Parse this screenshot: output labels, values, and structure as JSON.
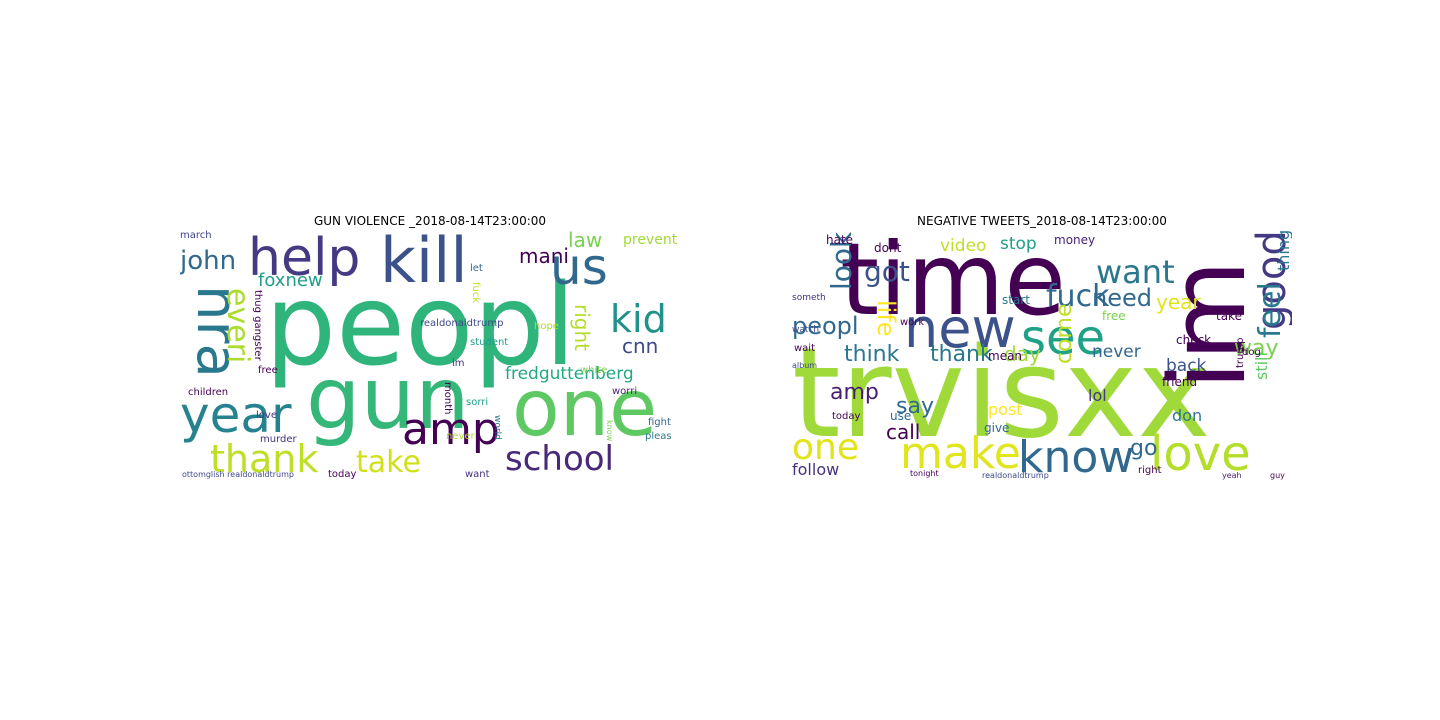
{
  "panels": [
    {
      "title": "GUN VIOLENCE _2018-08-14T23:00:00",
      "words": [
        {
          "text": "peopl",
          "weight": 100,
          "color": "#2fb47c"
        },
        {
          "text": "gun",
          "weight": 72,
          "color": "#35b779"
        },
        {
          "text": "one",
          "weight": 64,
          "color": "#5ec962"
        },
        {
          "text": "kill",
          "weight": 50,
          "color": "#3b528b"
        },
        {
          "text": "us",
          "weight": 40,
          "color": "#31688e"
        },
        {
          "text": "help",
          "weight": 40,
          "color": "#443983"
        },
        {
          "text": "nra",
          "weight": 42,
          "color": "#2a788e"
        },
        {
          "text": "year",
          "weight": 38,
          "color": "#26828e"
        },
        {
          "text": "amp",
          "weight": 36,
          "color": "#440154"
        },
        {
          "text": "kid",
          "weight": 30,
          "color": "#21918c"
        },
        {
          "text": "school",
          "weight": 30,
          "color": "#482878"
        },
        {
          "text": "thank",
          "weight": 30,
          "color": "#bddf26"
        },
        {
          "text": "take",
          "weight": 26,
          "color": "#d0e11c"
        },
        {
          "text": "everi",
          "weight": 24,
          "color": "#addc30"
        },
        {
          "text": "john",
          "weight": 22,
          "color": "#31688e"
        },
        {
          "text": "foxnew",
          "weight": 16,
          "color": "#1f9e89"
        },
        {
          "text": "mani",
          "weight": 16,
          "color": "#440154"
        },
        {
          "text": "law",
          "weight": 16,
          "color": "#7ad151"
        },
        {
          "text": "cnn",
          "weight": 16,
          "color": "#3e4989"
        },
        {
          "text": "right",
          "weight": 16,
          "color": "#b5de2b"
        },
        {
          "text": "fredguttenberg",
          "weight": 14,
          "color": "#22a884"
        },
        {
          "text": "prevent",
          "weight": 12,
          "color": "#a0da39"
        },
        {
          "text": "thug gangster",
          "weight": 9,
          "color": "#440154"
        },
        {
          "text": "realdonaldtrump",
          "weight": 8,
          "color": "#3e4989"
        },
        {
          "text": "student",
          "weight": 8,
          "color": "#1f9e89"
        },
        {
          "text": "march",
          "weight": 8,
          "color": "#414487"
        },
        {
          "text": "let",
          "weight": 8,
          "color": "#31688e"
        },
        {
          "text": "fuck",
          "weight": 8,
          "color": "#bddf26"
        },
        {
          "text": "hope",
          "weight": 8,
          "color": "#addc30"
        },
        {
          "text": "white",
          "weight": 8,
          "color": "#7ad151"
        },
        {
          "text": "worri",
          "weight": 8,
          "color": "#481f70"
        },
        {
          "text": "im",
          "weight": 8,
          "color": "#46327e"
        },
        {
          "text": "month",
          "weight": 8,
          "color": "#440154"
        },
        {
          "text": "sorri",
          "weight": 8,
          "color": "#1f9e89"
        },
        {
          "text": "free",
          "weight": 8,
          "color": "#440154"
        },
        {
          "text": "children",
          "weight": 8,
          "color": "#440154"
        },
        {
          "text": "love",
          "weight": 8,
          "color": "#46327e"
        },
        {
          "text": "murder",
          "weight": 8,
          "color": "#46327e"
        },
        {
          "text": "world",
          "weight": 7,
          "color": "#2a788e"
        },
        {
          "text": "fight",
          "weight": 7,
          "color": "#31688e"
        },
        {
          "text": "never",
          "weight": 8,
          "color": "#addc30"
        },
        {
          "text": "pleas",
          "weight": 8,
          "color": "#2a788e"
        },
        {
          "text": "today",
          "weight": 8,
          "color": "#440154"
        },
        {
          "text": "want",
          "weight": 8,
          "color": "#46327e"
        },
        {
          "text": "know",
          "weight": 6,
          "color": "#7ad151"
        },
        {
          "text": "ottomglish realdonaldtrump",
          "weight": 5,
          "color": "#3e4989"
        }
      ]
    },
    {
      "title": "NEGATIVE TWEETS_2018-08-14T23:00:00",
      "words": [
        {
          "text": "trvisxx",
          "weight": 100,
          "color": "#9fda3a"
        },
        {
          "text": "time",
          "weight": 80,
          "color": "#440154"
        },
        {
          "text": "im",
          "weight": 80,
          "color": "#440154"
        },
        {
          "text": "new",
          "weight": 44,
          "color": "#3b528b"
        },
        {
          "text": "see",
          "weight": 40,
          "color": "#1fa188"
        },
        {
          "text": "know",
          "weight": 38,
          "color": "#31688e"
        },
        {
          "text": "love",
          "weight": 38,
          "color": "#b5de2b"
        },
        {
          "text": "make",
          "weight": 36,
          "color": "#e0e51e"
        },
        {
          "text": "one",
          "weight": 30,
          "color": "#e2e418"
        },
        {
          "text": "good",
          "weight": 30,
          "color": "#443983"
        },
        {
          "text": "want",
          "weight": 26,
          "color": "#2a788e"
        },
        {
          "text": "fuck",
          "weight": 26,
          "color": "#31688e"
        },
        {
          "text": "feel",
          "weight": 26,
          "color": "#2a788e"
        },
        {
          "text": "look",
          "weight": 22,
          "color": "#31688e"
        },
        {
          "text": "got",
          "weight": 22,
          "color": "#3b528b"
        },
        {
          "text": "peopl",
          "weight": 20,
          "color": "#31688e"
        },
        {
          "text": "life",
          "weight": 20,
          "color": "#fde725"
        },
        {
          "text": "need",
          "weight": 20,
          "color": "#31688e"
        },
        {
          "text": "day",
          "weight": 18,
          "color": "#a0da39"
        },
        {
          "text": "think",
          "weight": 18,
          "color": "#2a788e"
        },
        {
          "text": "thank",
          "weight": 18,
          "color": "#2a788e"
        },
        {
          "text": "way",
          "weight": 18,
          "color": "#7ad151"
        },
        {
          "text": "come",
          "weight": 18,
          "color": "#bddf26"
        },
        {
          "text": "amp",
          "weight": 18,
          "color": "#481f70"
        },
        {
          "text": "say",
          "weight": 18,
          "color": "#31688e"
        },
        {
          "text": "go",
          "weight": 18,
          "color": "#31688e"
        },
        {
          "text": "call",
          "weight": 16,
          "color": "#440154"
        },
        {
          "text": "year",
          "weight": 16,
          "color": "#e2e418"
        },
        {
          "text": "video",
          "weight": 14,
          "color": "#bddf26"
        },
        {
          "text": "stop",
          "weight": 14,
          "color": "#1f9e89"
        },
        {
          "text": "never",
          "weight": 14,
          "color": "#31688e"
        },
        {
          "text": "back",
          "weight": 14,
          "color": "#3b528b"
        },
        {
          "text": "don",
          "weight": 14,
          "color": "#2a788e"
        },
        {
          "text": "lol",
          "weight": 14,
          "color": "#443983"
        },
        {
          "text": "post",
          "weight": 14,
          "color": "#fde725"
        },
        {
          "text": "follow",
          "weight": 14,
          "color": "#46327e"
        },
        {
          "text": "still",
          "weight": 12,
          "color": "#5ec962"
        },
        {
          "text": "thing",
          "weight": 12,
          "color": "#2a788e"
        },
        {
          "text": "hate",
          "weight": 10,
          "color": "#440154"
        },
        {
          "text": "dont",
          "weight": 10,
          "color": "#440154"
        },
        {
          "text": "start",
          "weight": 10,
          "color": "#2a788e"
        },
        {
          "text": "money",
          "weight": 9,
          "color": "#481f70"
        },
        {
          "text": "free",
          "weight": 9,
          "color": "#7ad151"
        },
        {
          "text": "mean",
          "weight": 10,
          "color": "#440154"
        },
        {
          "text": "give",
          "weight": 9,
          "color": "#31688e"
        },
        {
          "text": "friend",
          "weight": 9,
          "color": "#440154"
        },
        {
          "text": "take",
          "weight": 9,
          "color": "#440154"
        },
        {
          "text": "check",
          "weight": 9,
          "color": "#440154"
        },
        {
          "text": "dog",
          "weight": 8,
          "color": "#440154"
        },
        {
          "text": "work",
          "weight": 8,
          "color": "#440154"
        },
        {
          "text": "use",
          "weight": 10,
          "color": "#31688e"
        },
        {
          "text": "today",
          "weight": 8,
          "color": "#440154"
        },
        {
          "text": "right",
          "weight": 8,
          "color": "#440154"
        },
        {
          "text": "trump",
          "weight": 8,
          "color": "#440154"
        },
        {
          "text": "someth",
          "weight": 7,
          "color": "#46327e"
        },
        {
          "text": "watch",
          "weight": 7,
          "color": "#3e4989"
        },
        {
          "text": "wait",
          "weight": 7,
          "color": "#440154"
        },
        {
          "text": "album",
          "weight": 6,
          "color": "#3e4989"
        },
        {
          "text": "tonight",
          "weight": 6,
          "color": "#440154"
        },
        {
          "text": "realdonaldtrump",
          "weight": 6,
          "color": "#3e4989"
        },
        {
          "text": "yeah",
          "weight": 6,
          "color": "#481f70"
        },
        {
          "text": "guy",
          "weight": 6,
          "color": "#440154"
        }
      ]
    }
  ]
}
